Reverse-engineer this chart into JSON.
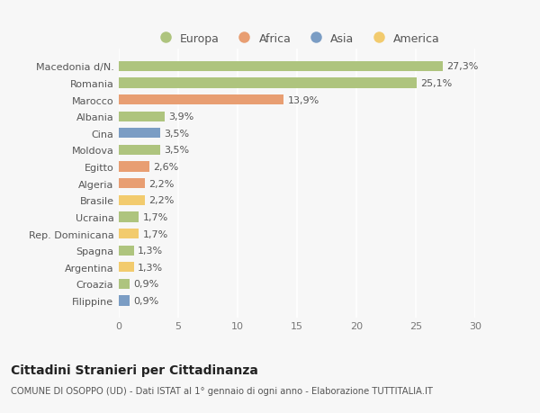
{
  "categories": [
    "Filippine",
    "Croazia",
    "Argentina",
    "Spagna",
    "Rep. Dominicana",
    "Ucraina",
    "Brasile",
    "Algeria",
    "Egitto",
    "Moldova",
    "Cina",
    "Albania",
    "Marocco",
    "Romania",
    "Macedonia d/N."
  ],
  "values": [
    0.9,
    0.9,
    1.3,
    1.3,
    1.7,
    1.7,
    2.2,
    2.2,
    2.6,
    3.5,
    3.5,
    3.9,
    13.9,
    25.1,
    27.3
  ],
  "labels": [
    "0,9%",
    "0,9%",
    "1,3%",
    "1,3%",
    "1,7%",
    "1,7%",
    "2,2%",
    "2,2%",
    "2,6%",
    "3,5%",
    "3,5%",
    "3,9%",
    "13,9%",
    "25,1%",
    "27,3%"
  ],
  "colors": [
    "#7b9dc4",
    "#aec47e",
    "#f2cb6e",
    "#aec47e",
    "#f2cb6e",
    "#aec47e",
    "#f2cb6e",
    "#e89e72",
    "#e89e72",
    "#aec47e",
    "#7b9dc4",
    "#aec47e",
    "#e89e72",
    "#aec47e",
    "#aec47e"
  ],
  "legend_labels": [
    "Europa",
    "Africa",
    "Asia",
    "America"
  ],
  "legend_colors": [
    "#aec47e",
    "#e89e72",
    "#7b9dc4",
    "#f2cb6e"
  ],
  "title": "Cittadini Stranieri per Cittadinanza",
  "subtitle": "COMUNE DI OSOPPO (UD) - Dati ISTAT al 1° gennaio di ogni anno - Elaborazione TUTTITALIA.IT",
  "xlim": [
    0,
    30
  ],
  "xticks": [
    0,
    5,
    10,
    15,
    20,
    25,
    30
  ],
  "background_color": "#f7f7f7",
  "grid_color": "#ffffff",
  "bar_height": 0.6
}
